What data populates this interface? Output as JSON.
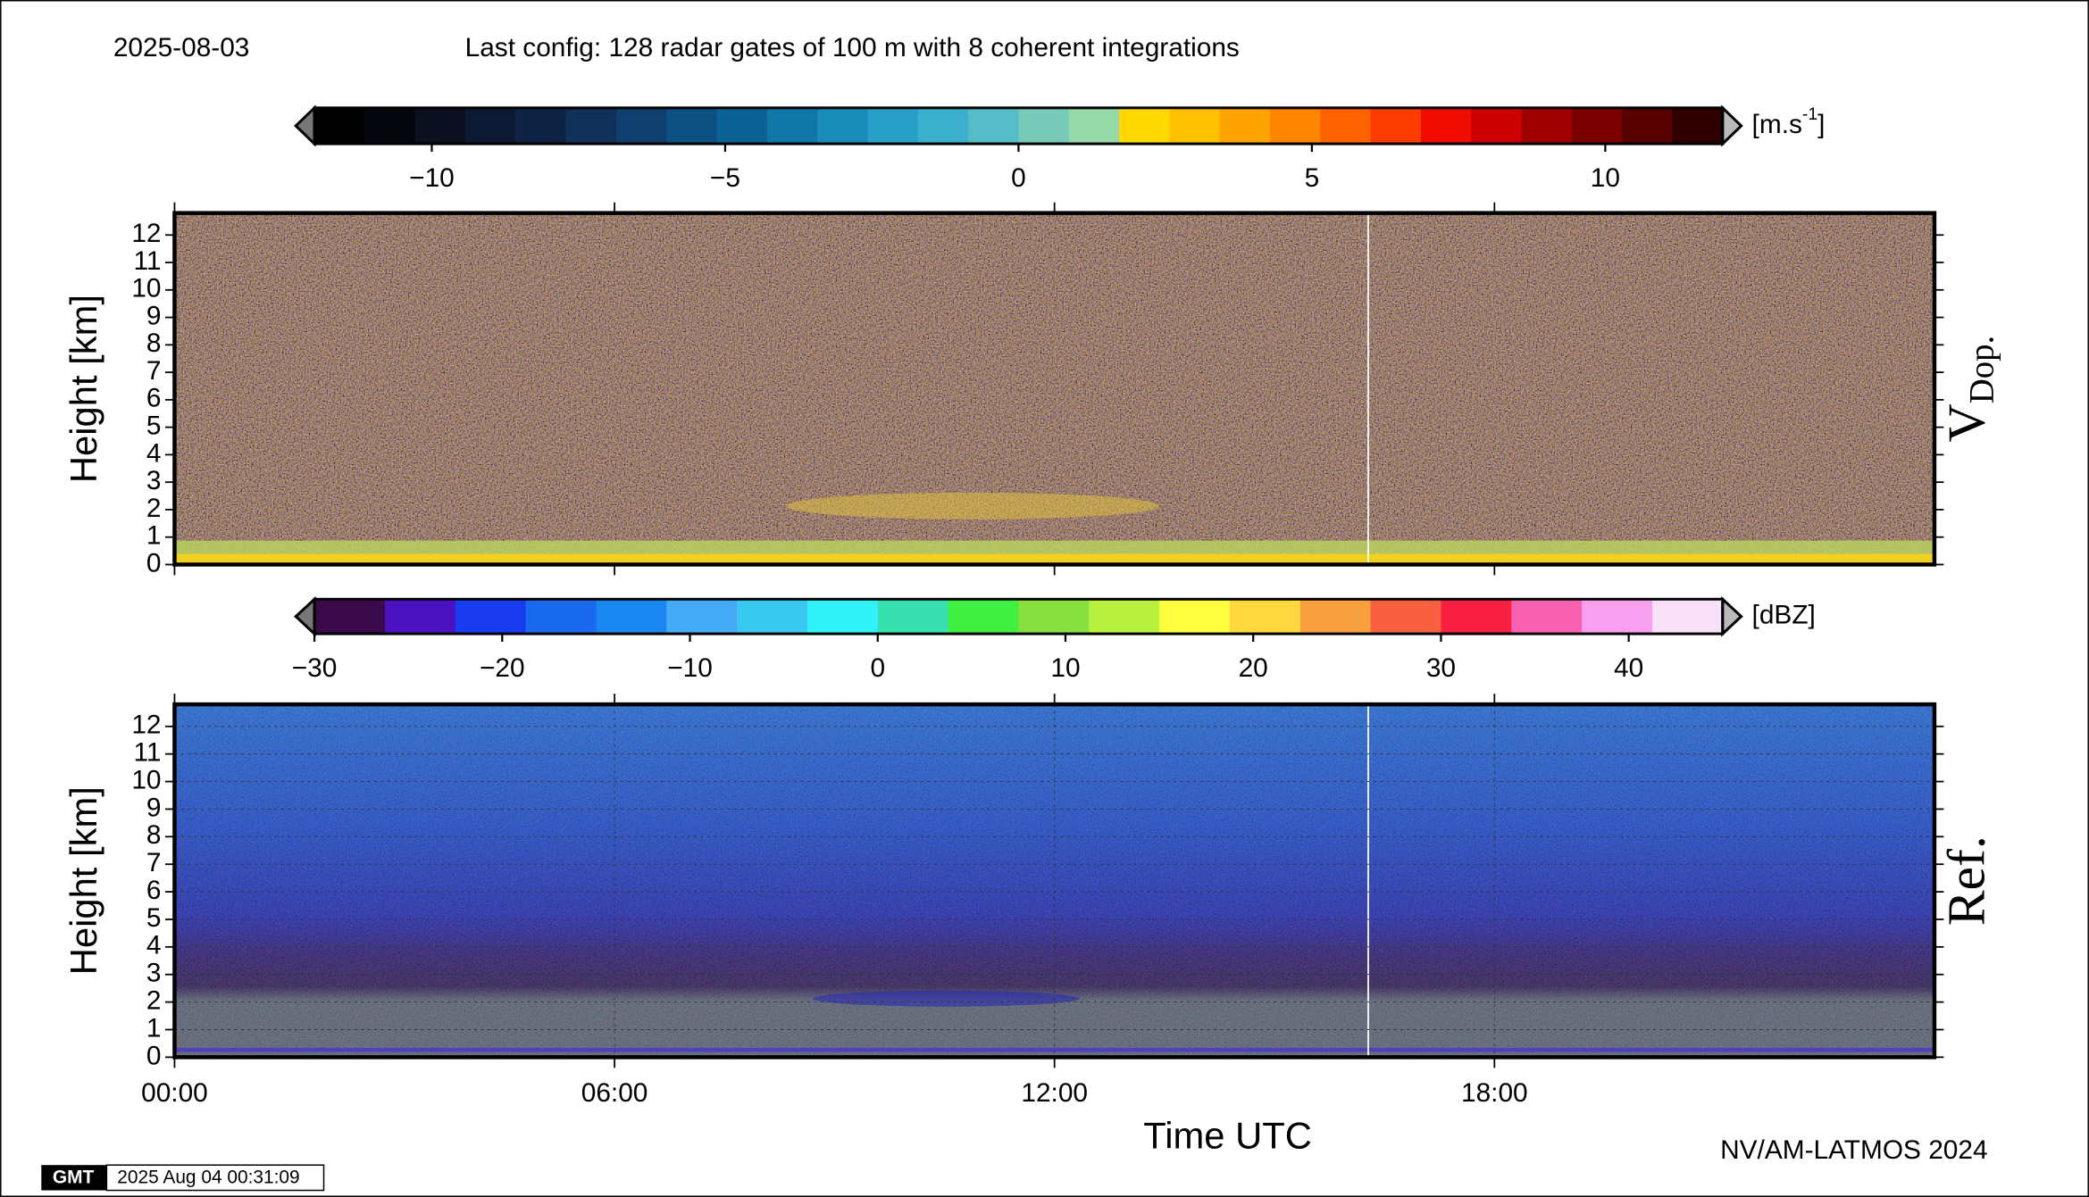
{
  "header": {
    "date": "2025-08-03",
    "config": "Last config: 128 radar gates of 100 m with 8 coherent integrations"
  },
  "chart_data": [
    {
      "type": "heatmap",
      "panel_label": "V",
      "panel_label_sub": "Dop.",
      "ylabel": "Height [km]",
      "ylim": [
        0,
        12.8
      ],
      "yticks": [
        0,
        1,
        2,
        3,
        4,
        5,
        6,
        7,
        8,
        9,
        10,
        11,
        12
      ],
      "xlim": [
        0,
        24
      ],
      "colorbar": {
        "unit": "[m.s",
        "unit_sup": "-1",
        "unit_end": "]",
        "range": [
          -12,
          12
        ],
        "ticks": [
          {
            "value": -10,
            "label": "−10"
          },
          {
            "value": -5,
            "label": "−5"
          },
          0,
          5,
          10
        ],
        "colors": [
          "#000000",
          "#05070f",
          "#0a1020",
          "#0d1a33",
          "#0f2445",
          "#103058",
          "#0f3f6e",
          "#0d5082",
          "#0c6294",
          "#1177a8",
          "#1a8cba",
          "#28a0c6",
          "#3ab0cc",
          "#55bcc8",
          "#77c9b8",
          "#96d8a8",
          "#ffd800",
          "#ffc000",
          "#ffa300",
          "#ff8400",
          "#ff6200",
          "#ff3c00",
          "#f00d00",
          "#cc0000",
          "#a00000",
          "#7a0000",
          "#560000",
          "#300000"
        ]
      }
    },
    {
      "type": "heatmap",
      "panel_label": "Ref.",
      "ylabel": "Height [km]",
      "ylim": [
        0,
        12.8
      ],
      "yticks": [
        0,
        1,
        2,
        3,
        4,
        5,
        6,
        7,
        8,
        9,
        10,
        11,
        12
      ],
      "xlim": [
        0,
        24
      ],
      "xticks": [
        {
          "value": 0,
          "label": "00:00"
        },
        {
          "value": 6,
          "label": "06:00"
        },
        {
          "value": 12,
          "label": "12:00"
        },
        {
          "value": 18,
          "label": "18:00"
        }
      ],
      "xlabel": "Time UTC",
      "colorbar": {
        "unit": "[dBZ]",
        "range": [
          -30,
          45
        ],
        "ticks": [
          {
            "value": -30,
            "label": "−30"
          },
          {
            "value": -20,
            "label": "−20"
          },
          {
            "value": -10,
            "label": "−10"
          },
          0,
          10,
          20,
          30,
          40
        ],
        "colors": [
          "#3a0a4a",
          "#4a12c0",
          "#1a3cf0",
          "#1a6af0",
          "#1a86f0",
          "#45aaf5",
          "#38c8f0",
          "#30f0f8",
          "#38e0b0",
          "#40f040",
          "#88e040",
          "#b8f040",
          "#ffff40",
          "#ffd840",
          "#f8a040",
          "#f86040",
          "#f82040",
          "#f860b0",
          "#f8a0f0",
          "#f8e0f8"
        ]
      }
    }
  ],
  "footer": {
    "credit": "NV/AM-LATMOS 2024",
    "logo": "GMT",
    "timestamp": "2025 Aug 04 00:31:09"
  }
}
